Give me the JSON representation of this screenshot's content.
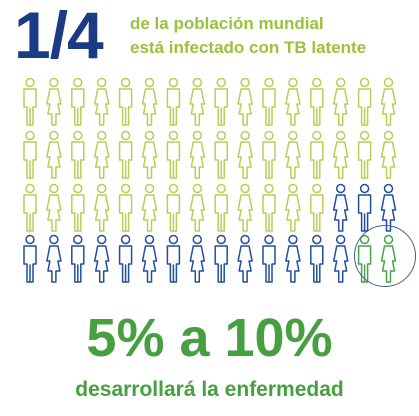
{
  "headline": {
    "fraction": "1/4",
    "subtitle_line1": "de la población mundial",
    "subtitle_line2": "está infectado con TB latente"
  },
  "people_grid": {
    "rows": [
      [
        "g",
        "g",
        "g",
        "g",
        "g",
        "g",
        "g",
        "g",
        "g",
        "g",
        "g",
        "g",
        "g",
        "g",
        "g",
        "g"
      ],
      [
        "g",
        "g",
        "g",
        "g",
        "g",
        "g",
        "g",
        "g",
        "g",
        "g",
        "g",
        "g",
        "g",
        "g",
        "g",
        "g"
      ],
      [
        "g",
        "g",
        "g",
        "g",
        "g",
        "g",
        "g",
        "g",
        "g",
        "g",
        "g",
        "g",
        "g",
        "b",
        "b",
        "b"
      ],
      [
        "b",
        "b",
        "b",
        "b",
        "b",
        "b",
        "b",
        "b",
        "b",
        "b",
        "b",
        "b",
        "b",
        "b",
        "d",
        "d"
      ]
    ],
    "colors": {
      "g": "#b7cf55",
      "b": "#1f4f9e",
      "d": "#4aa14a"
    },
    "highlighted": "last two figures of the bottom row"
  },
  "result": {
    "range": "5% a 10%",
    "caption": "desarrollará la enfermedad"
  }
}
